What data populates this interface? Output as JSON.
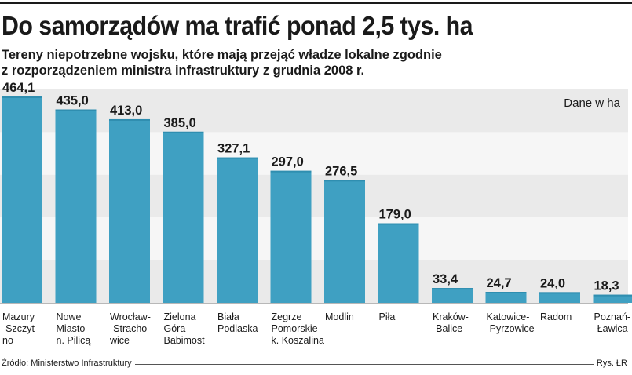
{
  "colors": {
    "bar": "#3fa0c2",
    "bar_top": "#2f8eb0",
    "band_a": "#eaeaea",
    "band_b": "#f6f6f6",
    "text": "#1a1a1a"
  },
  "chart_data": {
    "type": "bar",
    "title": "Do samorządów ma trafić ponad 2,5 tys. ha",
    "subtitle": [
      "Tereny niepotrzebne wojsku, które mają przejąć władze lokalne zgodnie",
      "z rozporządzeniem ministra infrastruktury z grudnia 2008 r."
    ],
    "unit_note": "Dane w ha",
    "ylim": [
      0,
      480
    ],
    "categories": [
      [
        "Mazury",
        "-Szczyt-",
        "no"
      ],
      [
        "Nowe",
        "Miasto",
        "n. Pilicą"
      ],
      [
        "Wrocław-",
        "-Stracho-",
        "wice"
      ],
      [
        "Zielona",
        "Góra –",
        "Babimost"
      ],
      [
        "Biała",
        "Podlaska"
      ],
      [
        "Zegrze",
        "Pomorskie",
        "k. Koszalina"
      ],
      [
        "Modlin"
      ],
      [
        "Piła"
      ],
      [
        "Kraków-",
        "-Balice"
      ],
      [
        "Katowice-",
        "-Pyrzowice"
      ],
      [
        "Radom"
      ],
      [
        "Poznań-",
        "-Ławica"
      ]
    ],
    "values": [
      464.1,
      435.0,
      413.0,
      385.0,
      327.1,
      297.0,
      276.5,
      179.0,
      33.4,
      24.7,
      24.0,
      18.3
    ],
    "value_labels": [
      "464,1",
      "435,0",
      "413,0",
      "385,0",
      "327,1",
      "297,0",
      "276,5",
      "179,0",
      "33,4",
      "24,7",
      "24,0",
      "18,3"
    ],
    "source": "Źródło: Ministerstwo Infrastruktury",
    "credit": "Rys. ŁR"
  }
}
